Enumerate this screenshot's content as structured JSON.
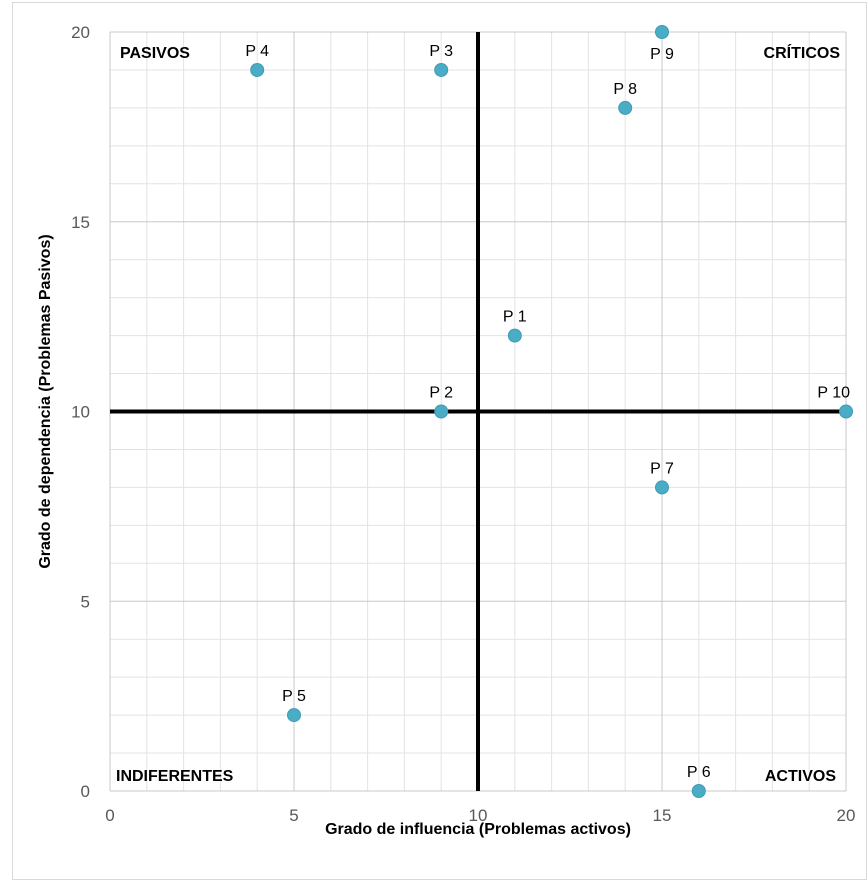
{
  "chart_data": {
    "type": "scatter",
    "xlabel": "Grado de  influencia  (Problemas activos)",
    "ylabel": "Grado de dependencia (Problemas Pasivos)",
    "xlim": [
      0,
      20
    ],
    "ylim": [
      0,
      20
    ],
    "x_ticks": [
      0,
      5,
      10,
      15,
      20
    ],
    "y_ticks": [
      0,
      5,
      10,
      15,
      20
    ],
    "grid": true,
    "reference_lines": {
      "x": 10,
      "y": 10
    },
    "point_color": "#4bacc6",
    "points": [
      {
        "label": "P 1",
        "x": 11,
        "y": 12
      },
      {
        "label": "P 2",
        "x": 9,
        "y": 10
      },
      {
        "label": "P 3",
        "x": 9,
        "y": 19
      },
      {
        "label": "P 4",
        "x": 4,
        "y": 19
      },
      {
        "label": "P 5",
        "x": 5,
        "y": 2
      },
      {
        "label": "P 6",
        "x": 16,
        "y": 0
      },
      {
        "label": "P 7",
        "x": 15,
        "y": 8
      },
      {
        "label": "P 8",
        "x": 14,
        "y": 18
      },
      {
        "label": "P 9",
        "x": 15,
        "y": 20
      },
      {
        "label": "P 10",
        "x": 20,
        "y": 10
      }
    ],
    "quadrants": {
      "top_left": "PASIVOS",
      "top_right": "CRÍTICOS",
      "bottom_left": "INDIFERENTES",
      "bottom_right": "ACTIVOS"
    }
  }
}
